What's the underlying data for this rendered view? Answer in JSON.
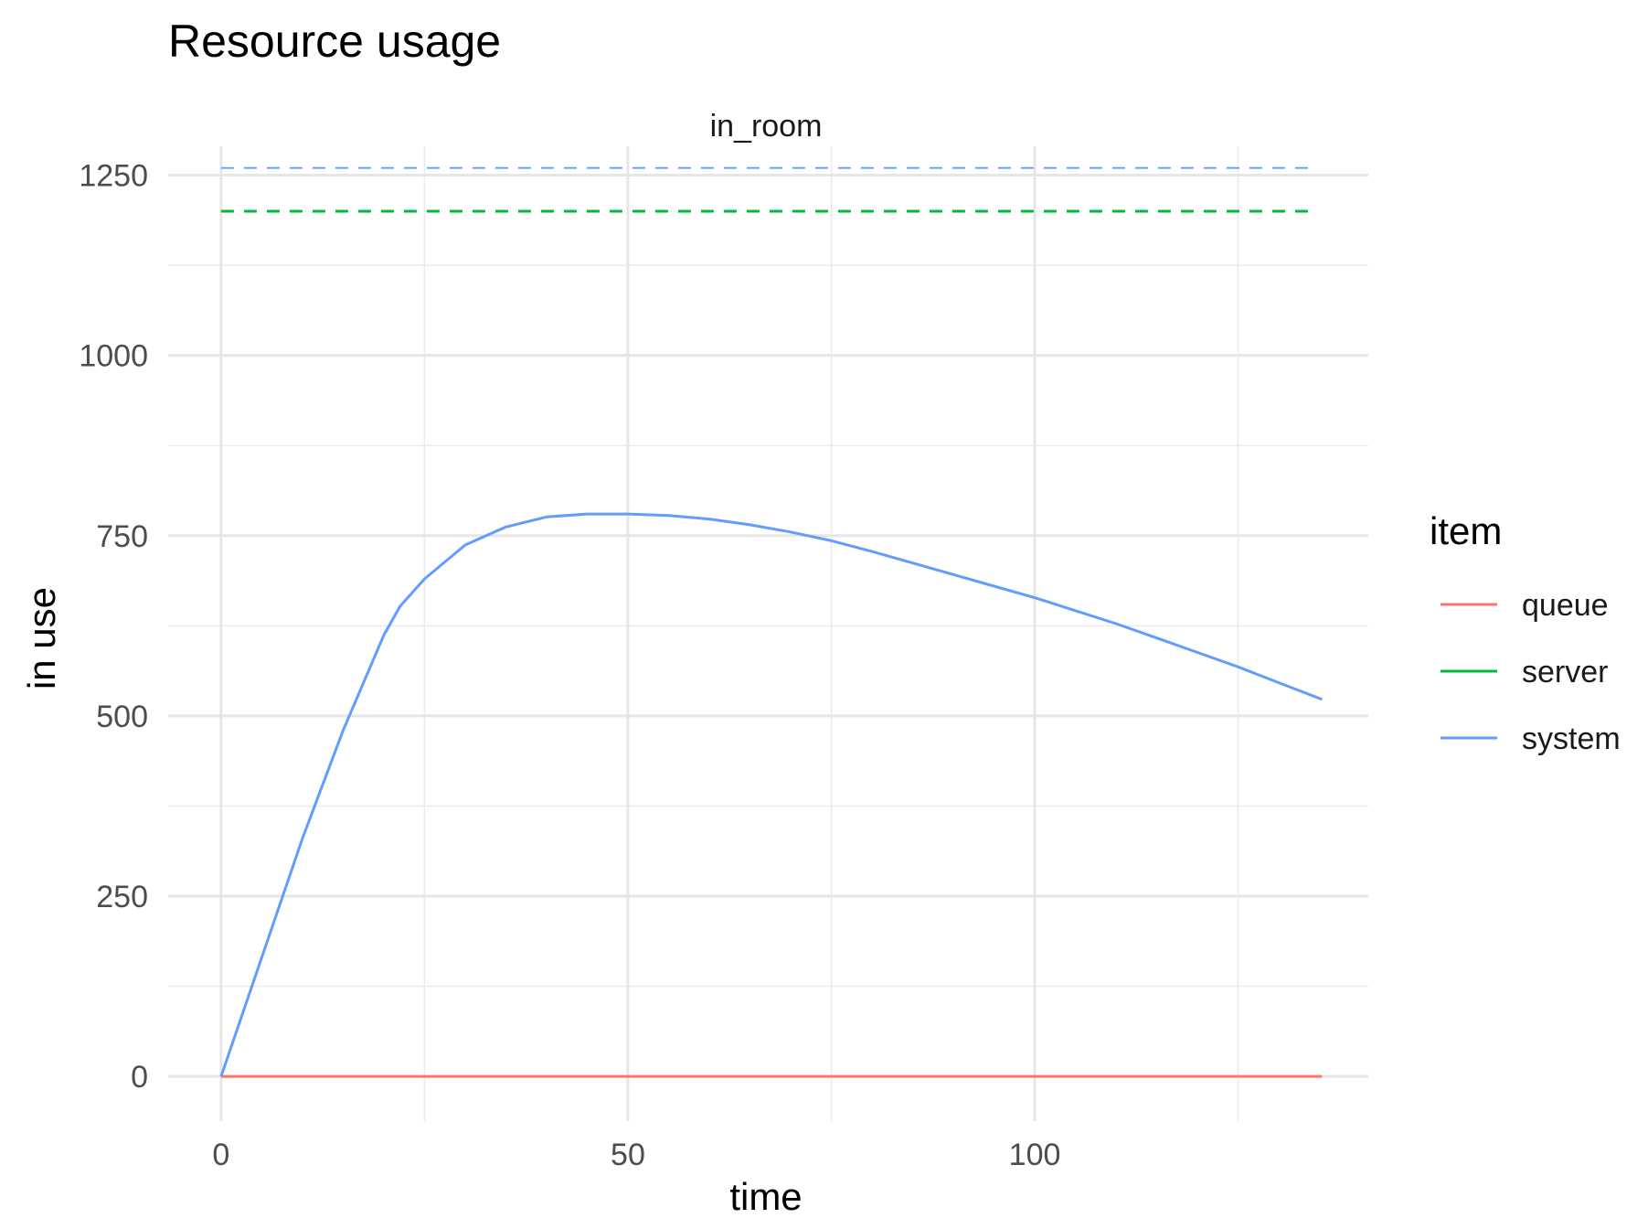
{
  "chart_data": {
    "type": "line",
    "title": "Resource usage",
    "facet": "in_room",
    "xlabel": "time",
    "ylabel": "in use",
    "xlim": [
      -6.5,
      141
    ],
    "ylim": [
      -62,
      1290
    ],
    "x_ticks": [
      0,
      50,
      100
    ],
    "x_tick_labels": [
      "0",
      "50",
      "100"
    ],
    "y_ticks": [
      0,
      250,
      500,
      750,
      1000,
      1250
    ],
    "y_tick_labels": [
      "0",
      "250",
      "500",
      "750",
      "1000",
      "1250"
    ],
    "grid": true,
    "legend": {
      "title": "item",
      "position": "right",
      "entries": [
        "queue",
        "server",
        "system"
      ]
    },
    "series": [
      {
        "name": "queue",
        "color": "#F8766D",
        "style": "solid",
        "x": [
          0,
          135.3
        ],
        "y": [
          0,
          0
        ]
      },
      {
        "name": "server",
        "color": "#00BA38",
        "style": "dashed",
        "x": [
          0,
          134
        ],
        "y": [
          1200,
          1200
        ]
      },
      {
        "name": "system",
        "color": "#619CFF",
        "style": "solid",
        "x": [
          0,
          5,
          10,
          15,
          20,
          22,
          25,
          30,
          35,
          40,
          45,
          50,
          55,
          60,
          65,
          70,
          75,
          80,
          85,
          90,
          95,
          100,
          105,
          110,
          115,
          120,
          125,
          130,
          135.3
        ],
        "y": [
          0,
          165,
          330,
          480,
          612,
          652,
          690,
          737,
          762,
          776,
          780,
          780,
          778,
          773,
          765,
          755,
          743,
          728,
          712,
          696,
          680,
          664,
          646,
          628,
          608,
          588,
          568,
          546,
          523
        ]
      },
      {
        "name": "system",
        "color": "#619CFF",
        "style": "dashed",
        "x": [
          0,
          134
        ],
        "y": [
          1260,
          1260
        ]
      }
    ]
  }
}
